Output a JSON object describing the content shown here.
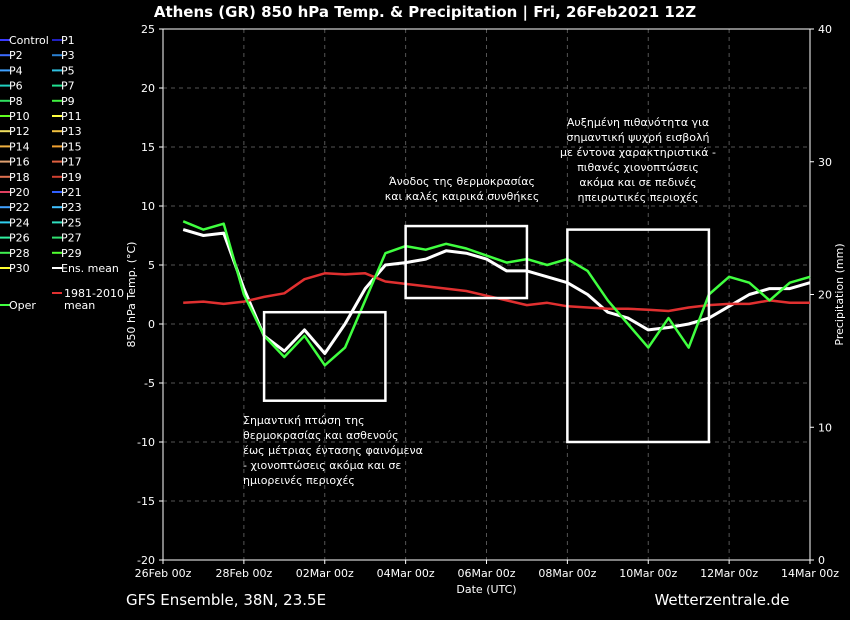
{
  "chart_data": {
    "type": "line",
    "title": "Athens  (GR)  850 hPa Temp. & Precipitation | Fri, 26Feb2021 12Z",
    "xlabel": "Date (UTC)",
    "ylabel": "850 hPa Temp. (°C)",
    "y2label": "Precipitation (mm)",
    "x_ticks": [
      "26Feb 00z",
      "28Feb 00z",
      "02Mar 00z",
      "04Mar 00z",
      "06Mar 00z",
      "08Mar 00z",
      "10Mar 00z",
      "12Mar 00z",
      "14Mar 00z"
    ],
    "xlim": [
      "2021-02-26 00:00",
      "2021-03-14 00:00"
    ],
    "ylim": [
      -20,
      25
    ],
    "y_ticks": [
      25,
      20,
      15,
      10,
      5,
      0,
      -5,
      -10,
      -15,
      -20
    ],
    "y2lim": [
      0,
      40
    ],
    "y2_ticks": [
      40,
      30,
      20,
      10,
      0
    ],
    "grid": true,
    "legend_placement": "left",
    "legend": [
      {
        "name": "Control",
        "color": "#3a3aff"
      },
      {
        "name": "P1",
        "color": "#2020c0"
      },
      {
        "name": "P2",
        "color": "#3c6cff"
      },
      {
        "name": "P3",
        "color": "#2a7fd0"
      },
      {
        "name": "P4",
        "color": "#3fa0ff"
      },
      {
        "name": "P5",
        "color": "#30c0e0"
      },
      {
        "name": "P6",
        "color": "#20d0c0"
      },
      {
        "name": "P7",
        "color": "#20e090"
      },
      {
        "name": "P8",
        "color": "#30e060"
      },
      {
        "name": "P9",
        "color": "#40f040"
      },
      {
        "name": "P10",
        "color": "#60ff20"
      },
      {
        "name": "P11",
        "color": "#ffff40"
      },
      {
        "name": "P12",
        "color": "#f0e060"
      },
      {
        "name": "P13",
        "color": "#f0c040"
      },
      {
        "name": "P14",
        "color": "#f0b040"
      },
      {
        "name": "P15",
        "color": "#f0a030"
      },
      {
        "name": "P16",
        "color": "#e0a070"
      },
      {
        "name": "P17",
        "color": "#e06040"
      },
      {
        "name": "P18",
        "color": "#e07050"
      },
      {
        "name": "P19",
        "color": "#d04030"
      },
      {
        "name": "P20",
        "color": "#e04060"
      },
      {
        "name": "P21",
        "color": "#3060ff"
      },
      {
        "name": "P22",
        "color": "#40a0ff"
      },
      {
        "name": "P23",
        "color": "#40c0ff"
      },
      {
        "name": "P24",
        "color": "#30d0f0"
      },
      {
        "name": "P25",
        "color": "#30e0c0"
      },
      {
        "name": "P26",
        "color": "#30f0a0"
      },
      {
        "name": "P27",
        "color": "#30e070"
      },
      {
        "name": "P28",
        "color": "#40f050"
      },
      {
        "name": "P29",
        "color": "#50ff30"
      },
      {
        "name": "P30",
        "color": "#ffff30"
      },
      {
        "name": "Ens. mean",
        "color": "#ffffff"
      },
      {
        "name": "Oper",
        "color": "#40ff40"
      },
      {
        "name": "1981-2010 mean",
        "color": "#e03030"
      }
    ],
    "series": [
      {
        "name": "Ens. mean",
        "x": [
          "2021-02-26 12:00",
          "2021-02-27 00:00",
          "2021-02-27 12:00",
          "2021-02-28 00:00",
          "2021-02-28 12:00",
          "2021-03-01 00:00",
          "2021-03-01 12:00",
          "2021-03-02 00:00",
          "2021-03-02 12:00",
          "2021-03-03 00:00",
          "2021-03-03 12:00",
          "2021-03-04 00:00",
          "2021-03-04 12:00",
          "2021-03-05 00:00",
          "2021-03-05 12:00",
          "2021-03-06 00:00",
          "2021-03-06 12:00",
          "2021-03-07 00:00",
          "2021-03-07 12:00",
          "2021-03-08 00:00",
          "2021-03-08 12:00",
          "2021-03-09 00:00",
          "2021-03-09 12:00",
          "2021-03-10 00:00",
          "2021-03-10 12:00",
          "2021-03-11 00:00",
          "2021-03-11 12:00",
          "2021-03-12 00:00",
          "2021-03-12 12:00",
          "2021-03-13 00:00",
          "2021-03-13 12:00",
          "2021-03-14 00:00"
        ],
        "y": [
          8.0,
          7.5,
          7.7,
          3.0,
          -1.0,
          -2.3,
          -0.5,
          -2.5,
          0.0,
          3.0,
          5.0,
          5.2,
          5.5,
          6.2,
          6.0,
          5.5,
          4.5,
          4.5,
          4.0,
          3.5,
          2.5,
          1.0,
          0.5,
          -0.5,
          -0.3,
          0.0,
          0.5,
          1.5,
          2.5,
          3.0,
          3.0,
          3.5
        ]
      },
      {
        "name": "1981-2010 mean",
        "x": [
          "2021-02-26 12:00",
          "2021-02-27 00:00",
          "2021-02-27 12:00",
          "2021-02-28 00:00",
          "2021-02-28 12:00",
          "2021-03-01 00:00",
          "2021-03-01 12:00",
          "2021-03-02 00:00",
          "2021-03-02 12:00",
          "2021-03-03 00:00",
          "2021-03-03 12:00",
          "2021-03-04 00:00",
          "2021-03-04 12:00",
          "2021-03-05 00:00",
          "2021-03-05 12:00",
          "2021-03-06 00:00",
          "2021-03-06 12:00",
          "2021-03-07 00:00",
          "2021-03-07 12:00",
          "2021-03-08 00:00",
          "2021-03-08 12:00",
          "2021-03-09 00:00",
          "2021-03-09 12:00",
          "2021-03-10 00:00",
          "2021-03-10 12:00",
          "2021-03-11 00:00",
          "2021-03-11 12:00",
          "2021-03-12 00:00",
          "2021-03-12 12:00",
          "2021-03-13 00:00",
          "2021-03-13 12:00",
          "2021-03-14 00:00"
        ],
        "y": [
          1.8,
          1.9,
          1.7,
          1.9,
          2.3,
          2.6,
          3.8,
          4.3,
          4.2,
          4.3,
          3.6,
          3.4,
          3.2,
          3.0,
          2.8,
          2.4,
          2.0,
          1.6,
          1.8,
          1.5,
          1.4,
          1.3,
          1.3,
          1.2,
          1.1,
          1.4,
          1.6,
          1.7,
          1.7,
          2.0,
          1.8,
          1.8
        ]
      },
      {
        "name": "Oper",
        "x": [
          "2021-02-26 12:00",
          "2021-02-27 00:00",
          "2021-02-27 12:00",
          "2021-02-28 00:00",
          "2021-02-28 12:00",
          "2021-03-01 00:00",
          "2021-03-01 12:00",
          "2021-03-02 00:00",
          "2021-03-02 12:00",
          "2021-03-03 00:00",
          "2021-03-03 12:00",
          "2021-03-04 00:00",
          "2021-03-04 12:00",
          "2021-03-05 00:00",
          "2021-03-05 12:00",
          "2021-03-06 00:00",
          "2021-03-06 12:00",
          "2021-03-07 00:00",
          "2021-03-07 12:00",
          "2021-03-08 00:00",
          "2021-03-08 12:00",
          "2021-03-09 00:00",
          "2021-03-09 12:00",
          "2021-03-10 00:00",
          "2021-03-10 12:00",
          "2021-03-11 00:00",
          "2021-03-11 12:00",
          "2021-03-12 00:00",
          "2021-03-12 12:00",
          "2021-03-13 00:00",
          "2021-03-13 12:00",
          "2021-03-14 00:00"
        ],
        "y": [
          8.7,
          8.0,
          8.5,
          2.5,
          -1.0,
          -2.8,
          -1.0,
          -3.5,
          -2.0,
          2.0,
          6.0,
          6.6,
          6.3,
          6.8,
          6.4,
          5.8,
          5.2,
          5.5,
          5.0,
          5.5,
          4.5,
          2.0,
          0.0,
          -2.0,
          0.5,
          -2.0,
          2.5,
          4.0,
          3.5,
          2.0,
          3.5,
          4.0
        ]
      }
    ],
    "annotations": [
      {
        "lines": [
          "Σημαντική πτώση της",
          "θερμοκρασίας και ασθενούς",
          "έως μέτριας έντασης φαινόμενα",
          "- χιονοπτώσεις ακόμα και σε",
          "ημιορεινές περιοχές"
        ]
      },
      {
        "lines": [
          "Άνοδος της θερμοκρασίας",
          "και καλές καιρικά συνθήκες"
        ]
      },
      {
        "lines": [
          "Αυξημένη πιθανότητα για",
          "σημαντική ψυχρή εισβολή",
          "με έντονα χαρακτηριστικά -",
          "πιθανές χιονοπτώσεις",
          "ακόμα και σε πεδινές",
          "ηπειρωτικές περιοχές"
        ]
      }
    ],
    "boxes_temp_ranges": [
      {
        "from": "2021-02-28 12:00",
        "to": "2021-03-03 12:00",
        "ymin": -6.5,
        "ymax": 1.0
      },
      {
        "from": "2021-03-04 00:00",
        "to": "2021-03-07 00:00",
        "ymin": 2.2,
        "ymax": 8.3
      },
      {
        "from": "2021-03-08 00:00",
        "to": "2021-03-11 12:00",
        "ymin": -10.0,
        "ymax": 8.0
      }
    ]
  },
  "footer": {
    "left": "GFS Ensemble, 38N, 23.5E",
    "right": "Wetterzentrale.de"
  }
}
